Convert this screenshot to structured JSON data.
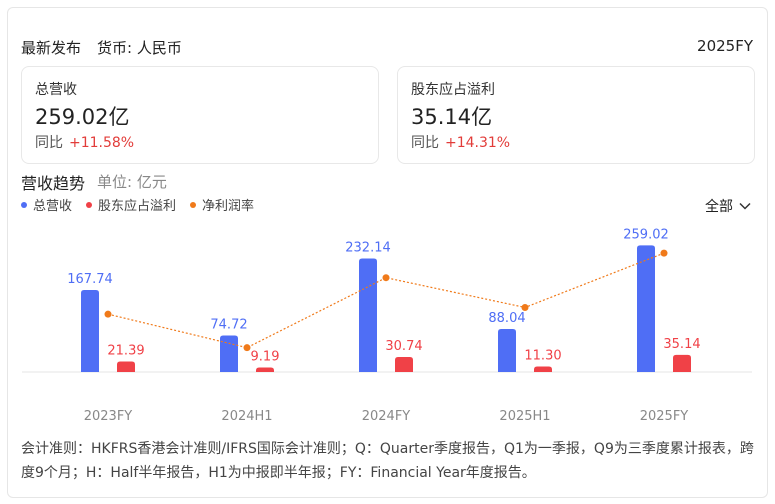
{
  "header": {
    "title": "最新发布",
    "currency": "货币: 人民币",
    "period": "2025FY"
  },
  "metrics": [
    {
      "label": "总营收",
      "value": "259.02亿",
      "yoy_label": "同比",
      "yoy_value": "+11.58%"
    },
    {
      "label": "股东应占溢利",
      "value": "35.14亿",
      "yoy_label": "同比",
      "yoy_value": "+14.31%"
    }
  ],
  "section": {
    "title": "营收趋势",
    "unit": "单位: 亿元",
    "filter": "全部"
  },
  "colors": {
    "revenue": "#4f6ef5",
    "profit": "#f04147",
    "margin": "#f07a1a",
    "positive_change": "#e23c39"
  },
  "chart_data": {
    "type": "bar",
    "categories": [
      "2023FY",
      "2024H1",
      "2024FY",
      "2025H1",
      "2025FY"
    ],
    "series": [
      {
        "name": "总营收",
        "kind": "bar",
        "color": "#4f6ef5",
        "values": [
          167.74,
          74.72,
          232.14,
          88.04,
          259.02
        ],
        "labels": [
          "167.74",
          "74.72",
          "232.14",
          "88.04",
          "259.02"
        ]
      },
      {
        "name": "股东应占溢利",
        "kind": "bar",
        "color": "#f04147",
        "values": [
          21.39,
          9.19,
          30.74,
          11.3,
          35.14
        ],
        "labels": [
          "21.39",
          "9.19",
          "30.74",
          "11.30",
          "35.14"
        ]
      },
      {
        "name": "净利润率",
        "kind": "line",
        "style": "dotted",
        "color": "#f07a1a",
        "values": [
          12.75,
          12.3,
          13.24,
          12.84,
          13.57
        ]
      }
    ],
    "ylim": [
      0,
      270
    ],
    "margin_range": [
      12.0,
      13.8
    ],
    "legend_position": "top-left",
    "grid": false
  },
  "footnote": "会计准则：HKFRS香港会计准则/IFRS国际会计准则；Q：Quarter季度报告，Q1为一季报，Q9为三季度累计报表，跨度9个月；H：Half半年报告，H1为中报即半年报；FY：Financial Year年度报告。"
}
